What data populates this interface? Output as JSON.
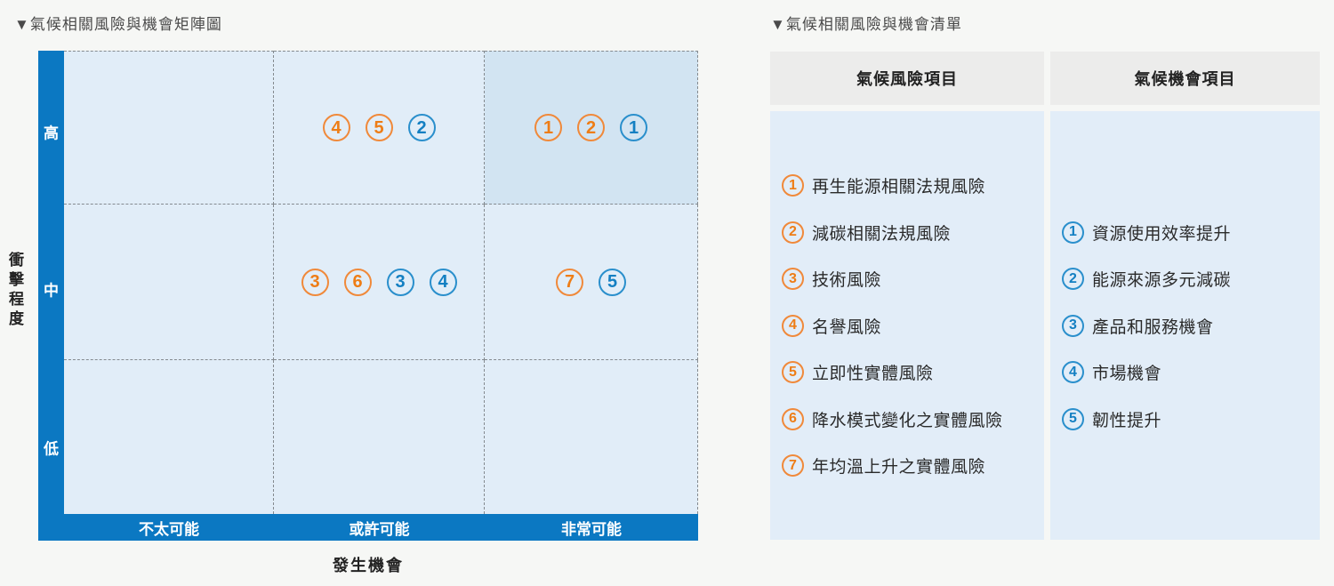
{
  "matrix": {
    "title": "▼氣候相關風險與機會矩陣圖",
    "y_axis": {
      "label": "衝擊程度",
      "levels": [
        "高",
        "中",
        "低"
      ]
    },
    "x_axis": {
      "label": "發生機會",
      "levels": [
        "不太可能",
        "或許可能",
        "非常可能"
      ]
    },
    "grid": {
      "rows": 3,
      "cols": 3,
      "highlight_cell": {
        "row": 0,
        "col": 2
      },
      "markers": [
        {
          "row": 0,
          "col": 1,
          "items": [
            {
              "t": "risk",
              "n": "4"
            },
            {
              "t": "risk",
              "n": "5"
            },
            {
              "t": "opp",
              "n": "2"
            }
          ]
        },
        {
          "row": 0,
          "col": 2,
          "items": [
            {
              "t": "risk",
              "n": "1"
            },
            {
              "t": "risk",
              "n": "2"
            },
            {
              "t": "opp",
              "n": "1"
            }
          ]
        },
        {
          "row": 1,
          "col": 1,
          "items": [
            {
              "t": "risk",
              "n": "3"
            },
            {
              "t": "risk",
              "n": "6"
            },
            {
              "t": "opp",
              "n": "3"
            },
            {
              "t": "opp",
              "n": "4"
            }
          ]
        },
        {
          "row": 1,
          "col": 2,
          "items": [
            {
              "t": "risk",
              "n": "7"
            },
            {
              "t": "opp",
              "n": "5"
            }
          ]
        }
      ]
    }
  },
  "list": {
    "title": "▼氣候相關風險與機會清單",
    "risk": {
      "header": "氣候風險項目",
      "items": [
        {
          "n": "1",
          "label": "再生能源相關法規風險"
        },
        {
          "n": "2",
          "label": "減碳相關法規風險"
        },
        {
          "n": "3",
          "label": "技術風險"
        },
        {
          "n": "4",
          "label": "名譽風險"
        },
        {
          "n": "5",
          "label": "立即性實體風險"
        },
        {
          "n": "6",
          "label": "降水模式變化之實體風險"
        },
        {
          "n": "7",
          "label": "年均溫上升之實體風險"
        }
      ]
    },
    "opportunity": {
      "header": "氣候機會項目",
      "items": [
        {
          "n": "1",
          "label": "資源使用效率提升"
        },
        {
          "n": "2",
          "label": "能源來源多元減碳"
        },
        {
          "n": "3",
          "label": "產品和服務機會"
        },
        {
          "n": "4",
          "label": "市場機會"
        },
        {
          "n": "5",
          "label": "韌性提升"
        }
      ]
    }
  },
  "colors": {
    "axis_bar_blue": "#0b78c2",
    "risk_orange": "#ee7d16",
    "opportunity_blue": "#137fc2",
    "cell_bg": "#e1edf8",
    "cell_highlight_bg": "#d2e4f2",
    "list_header_bg": "#ececeb",
    "list_body_bg": "#e2edf8",
    "page_bg": "#f6f7f5",
    "dashed_line": "#848a8f"
  },
  "chart_data": {
    "type": "scatter",
    "title": "氣候相關風險與機會矩陣圖",
    "xlabel": "發生機會",
    "ylabel": "衝擊程度",
    "x_categories": [
      "不太可能",
      "或許可能",
      "非常可能"
    ],
    "y_categories": [
      "低",
      "中",
      "高"
    ],
    "grid": "dashed 3x3 matrix",
    "legend_position": "right table",
    "highlight_region": {
      "x": "非常可能",
      "y": "高"
    },
    "series": [
      {
        "name": "氣候風險項目",
        "color": "#ee7d16",
        "points": [
          {
            "n": 1,
            "x": "非常可能",
            "y": "高",
            "label": "再生能源相關法規風險"
          },
          {
            "n": 2,
            "x": "非常可能",
            "y": "高",
            "label": "減碳相關法規風險"
          },
          {
            "n": 3,
            "x": "或許可能",
            "y": "中",
            "label": "技術風險"
          },
          {
            "n": 4,
            "x": "或許可能",
            "y": "高",
            "label": "名譽風險"
          },
          {
            "n": 5,
            "x": "或許可能",
            "y": "高",
            "label": "立即性實體風險"
          },
          {
            "n": 6,
            "x": "或許可能",
            "y": "中",
            "label": "降水模式變化之實體風險"
          },
          {
            "n": 7,
            "x": "非常可能",
            "y": "中",
            "label": "年均溫上升之實體風險"
          }
        ]
      },
      {
        "name": "氣候機會項目",
        "color": "#137fc2",
        "points": [
          {
            "n": 1,
            "x": "非常可能",
            "y": "高",
            "label": "資源使用效率提升"
          },
          {
            "n": 2,
            "x": "或許可能",
            "y": "高",
            "label": "能源來源多元減碳"
          },
          {
            "n": 3,
            "x": "或許可能",
            "y": "中",
            "label": "產品和服務機會"
          },
          {
            "n": 4,
            "x": "或許可能",
            "y": "中",
            "label": "市場機會"
          },
          {
            "n": 5,
            "x": "非常可能",
            "y": "中",
            "label": "韌性提升"
          }
        ]
      }
    ]
  }
}
